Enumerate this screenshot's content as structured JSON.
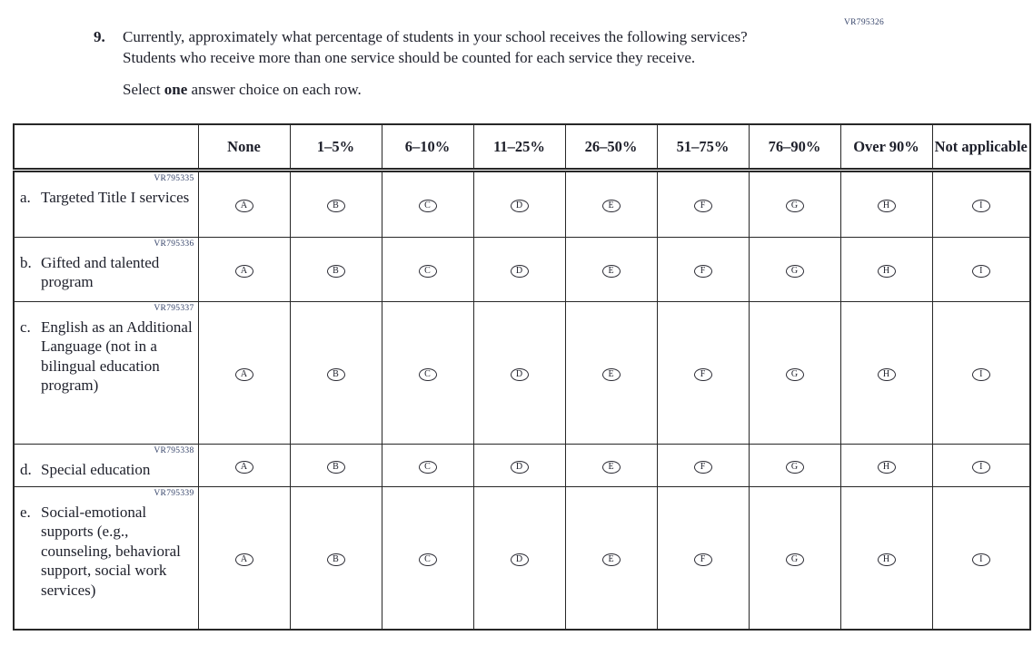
{
  "page": {
    "form_code": "VR795326"
  },
  "question": {
    "number": "9.",
    "text": "Currently, approximately what percentage of students in your school receives the following services? Students who receive more than one service should be counted for each service they receive.",
    "instruction_prefix": "Select ",
    "instruction_bold": "one",
    "instruction_suffix": " answer choice on each row."
  },
  "table": {
    "columns": [
      "None",
      "1–5%",
      "6–10%",
      "11–25%",
      "26–50%",
      "51–75%",
      "76–90%",
      "Over 90%",
      "Not applicable"
    ],
    "option_letters": [
      "A",
      "B",
      "C",
      "D",
      "E",
      "F",
      "G",
      "H",
      "I"
    ],
    "rows": [
      {
        "letter": "a.",
        "label": "Targeted Title I services",
        "code": "VR795335"
      },
      {
        "letter": "b.",
        "label": "Gifted and talented program",
        "code": "VR795336"
      },
      {
        "letter": "c.",
        "label": "English as an Additional Language (not in a bilingual education program)",
        "code": "VR795337"
      },
      {
        "letter": "d.",
        "label": "Special education",
        "code": "VR795338"
      },
      {
        "letter": "e.",
        "label": "Social-emotional supports (e.g., counseling, behavioral support, social work services)",
        "code": "VR795339"
      }
    ]
  },
  "colors": {
    "text": "#1d1f2a",
    "code_text": "#36446a",
    "border": "#272727",
    "background": "#ffffff"
  }
}
